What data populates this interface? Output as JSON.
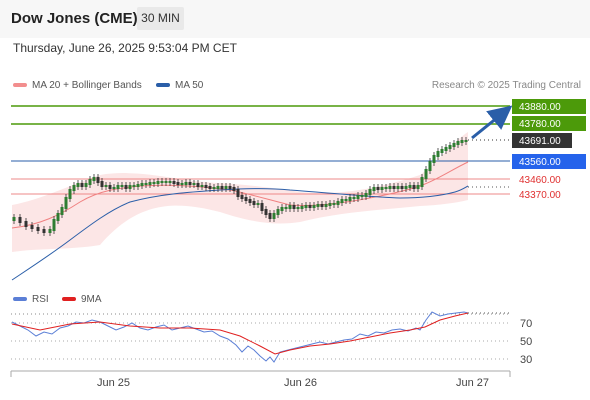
{
  "header": {
    "title": "Dow Jones (CME)",
    "timeframe_label": "30 MIN"
  },
  "datetime": "Thursday, June 26, 2025 9:53:04 PM CET",
  "legend": [
    {
      "label": "MA 20 + Bollinger Bands",
      "color": "#f28e8e"
    },
    {
      "label": "MA 50",
      "color": "#2a5ea8"
    }
  ],
  "credit": "Research © 2025 Trading Central",
  "price_levels": [
    {
      "label": "43880.00",
      "role": "resistance",
      "color": "#4c9a0a"
    },
    {
      "label": "43780.00",
      "role": "resistance",
      "color": "#4c9a0a"
    },
    {
      "label": "43691.00",
      "role": "last",
      "color": "#333333"
    },
    {
      "label": "43560.00",
      "role": "pivot",
      "color": "#2563eb"
    },
    {
      "label": "43460.00",
      "role": "support",
      "color": "#e03030"
    },
    {
      "label": "43370.00",
      "role": "support",
      "color": "#e03030"
    }
  ],
  "rsi_legend": [
    {
      "label": "RSI",
      "color": "#5b7fd6"
    },
    {
      "label": "9MA",
      "color": "#e02020"
    }
  ],
  "rsi_levels": [
    "70",
    "50",
    "30"
  ],
  "x_labels": [
    "Jun 25",
    "Jun 26",
    "Jun 27"
  ],
  "chart_data": {
    "type": "candlestick",
    "interval": "30 MIN",
    "price_axis_ticks": [
      43880,
      43780,
      43691,
      43560,
      43460,
      43370
    ],
    "rsi_axis_ticks": [
      70,
      50,
      30
    ],
    "x_ticks": [
      "Jun 25",
      "Jun 26",
      "Jun 27"
    ],
    "series": [
      {
        "name": "MA 20 + Bollinger Bands"
      },
      {
        "name": "MA 50"
      },
      {
        "name": "RSI"
      },
      {
        "name": "9MA"
      }
    ]
  }
}
